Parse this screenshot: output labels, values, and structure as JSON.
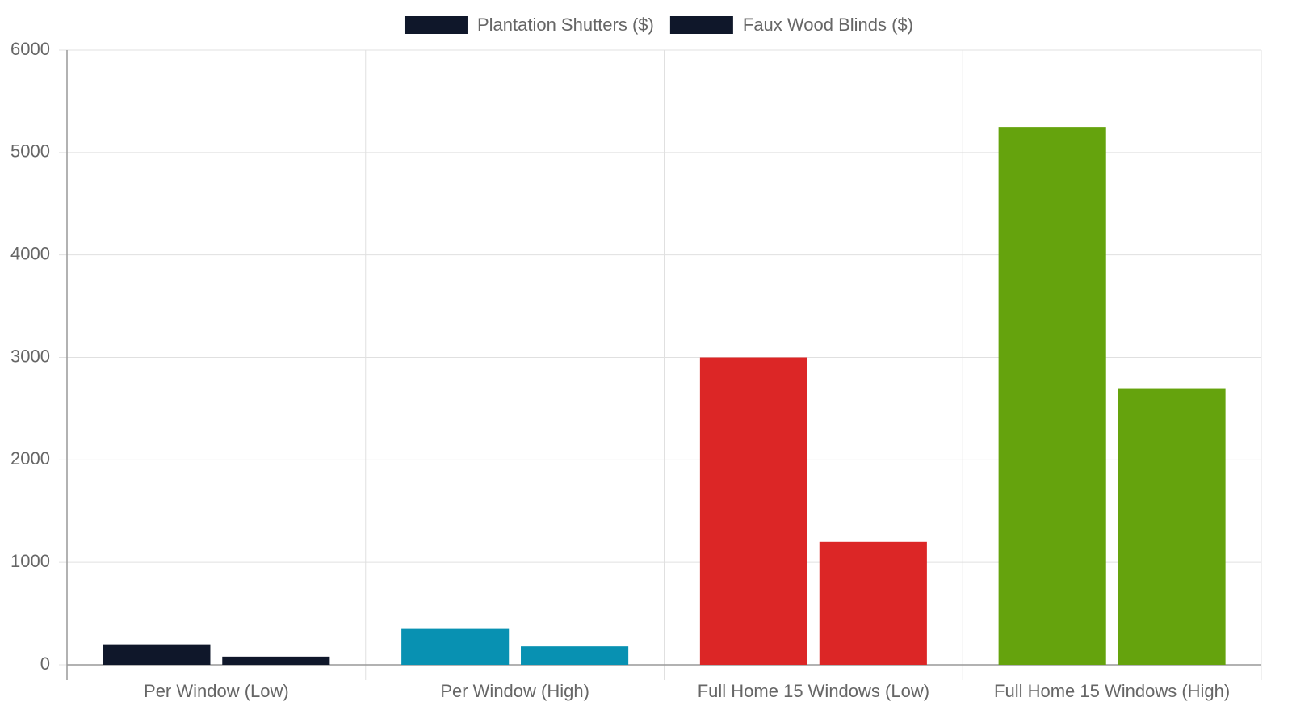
{
  "chart_data": {
    "type": "bar",
    "categories": [
      "Per Window (Low)",
      "Per Window (High)",
      "Full Home 15 Windows (Low)",
      "Full Home 15 Windows (High)"
    ],
    "series": [
      {
        "name": "Plantation Shutters ($)",
        "colors": [
          "#0f172a",
          "#0891b2",
          "#dc2626",
          "#65a30d"
        ],
        "values": [
          200,
          350,
          3000,
          5250
        ]
      },
      {
        "name": "Faux Wood Blinds ($)",
        "colors": [
          "#0f172a",
          "#0891b2",
          "#dc2626",
          "#65a30d"
        ],
        "values": [
          80,
          180,
          1200,
          2700
        ]
      }
    ],
    "ylim": [
      0,
      6000
    ],
    "yticks": [
      0,
      1000,
      2000,
      3000,
      4000,
      5000,
      6000
    ],
    "grid": true,
    "legend": "top"
  }
}
